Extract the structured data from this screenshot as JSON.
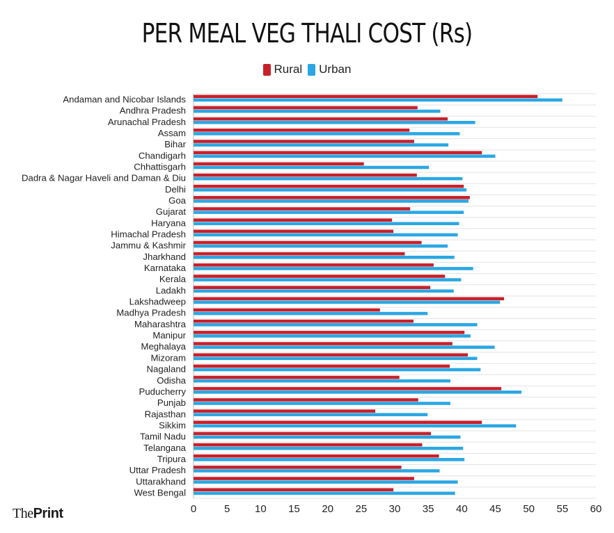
{
  "chart_data": {
    "type": "bar",
    "orientation": "horizontal",
    "title": "PER MEAL VEG THALI COST (Rs)",
    "legend_position": "top-center",
    "grid": true,
    "xlim": [
      0,
      60
    ],
    "x_ticks": [
      "0",
      "5",
      "10",
      "15",
      "20",
      "25",
      "30",
      "35",
      "40",
      "45",
      "50",
      "55",
      "60"
    ],
    "categories": [
      "Andaman and Nicobar Islands",
      "Andhra Pradesh",
      "Arunachal Pradesh",
      "Assam",
      "Bihar",
      "Chandigarh",
      "Chhattisgarh",
      "Dadra & Nagar Haveli and Daman & Diu",
      "Delhi",
      "Goa",
      "Gujarat",
      "Haryana",
      "Himachal Pradesh",
      "Jammu & Kashmir",
      "Jharkhand",
      "Karnataka",
      "Kerala",
      "Ladakh",
      "Lakshadweep",
      "Madhya Pradesh",
      "Maharashtra",
      "Manipur",
      "Meghalaya",
      "Mizoram",
      "Nagaland",
      "Odisha",
      "Puducherry",
      "Punjab",
      "Rajasthan",
      "Sikkim",
      "Tamil Nadu",
      "Telangana",
      "Tripura",
      "Uttar Pradesh",
      "Uttarakhand",
      "West Bengal"
    ],
    "series": [
      {
        "name": "Rural",
        "color": "#c8202a",
        "values": [
          51.3,
          33.4,
          37.9,
          32.2,
          32.9,
          43.0,
          25.4,
          33.3,
          40.3,
          41.2,
          32.3,
          29.6,
          29.8,
          34.0,
          31.5,
          35.8,
          37.5,
          35.3,
          46.3,
          27.8,
          32.8,
          40.4,
          38.6,
          40.9,
          38.2,
          30.7,
          45.9,
          33.5,
          27.1,
          43.0,
          35.4,
          34.1,
          36.6,
          31.0,
          32.9,
          29.8
        ],
        "values_note": ""
      },
      {
        "name": "Urban",
        "color": "#2ba7e3",
        "values": [
          55.0,
          36.8,
          42.0,
          39.7,
          38.0,
          45.0,
          35.1,
          40.1,
          40.7,
          41.0,
          40.3,
          39.6,
          39.4,
          37.9,
          38.9,
          41.7,
          39.9,
          38.8,
          45.7,
          34.9,
          42.3,
          41.3,
          44.9,
          42.3,
          42.8,
          38.3,
          48.9,
          38.3,
          34.9,
          48.1,
          39.8,
          40.2,
          40.4,
          36.7,
          39.4,
          39.0
        ]
      }
    ]
  },
  "brand": {
    "the": "The",
    "print": "Print"
  }
}
